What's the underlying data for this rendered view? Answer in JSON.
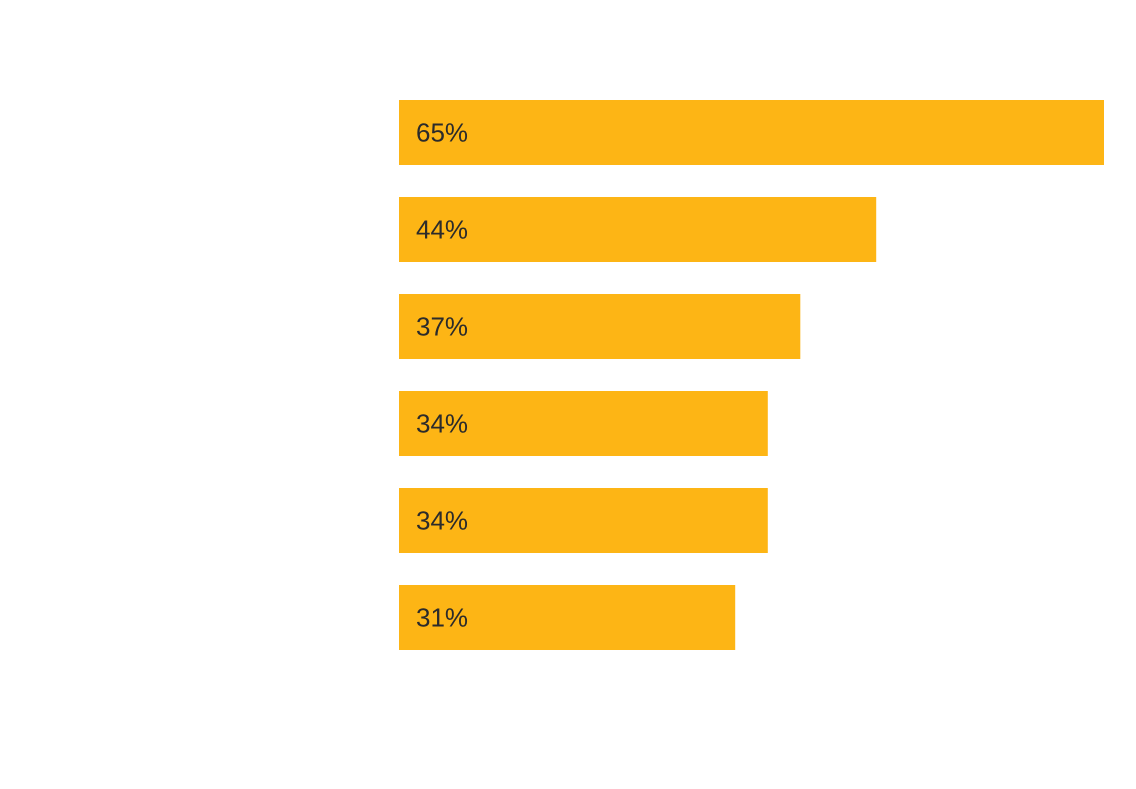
{
  "chart_data": {
    "type": "bar",
    "orientation": "horizontal",
    "categories": [
      "",
      "",
      "",
      "",
      "",
      ""
    ],
    "values": [
      65,
      44,
      37,
      34,
      34,
      31
    ],
    "labels": [
      "65%",
      "44%",
      "37%",
      "34%",
      "34%",
      "31%"
    ],
    "value_unit": "%",
    "bar_color": "#FDB515",
    "label_color": "#2b2b2b",
    "title": "",
    "xlabel": "",
    "ylabel": "",
    "grid": false,
    "legend": "none"
  }
}
